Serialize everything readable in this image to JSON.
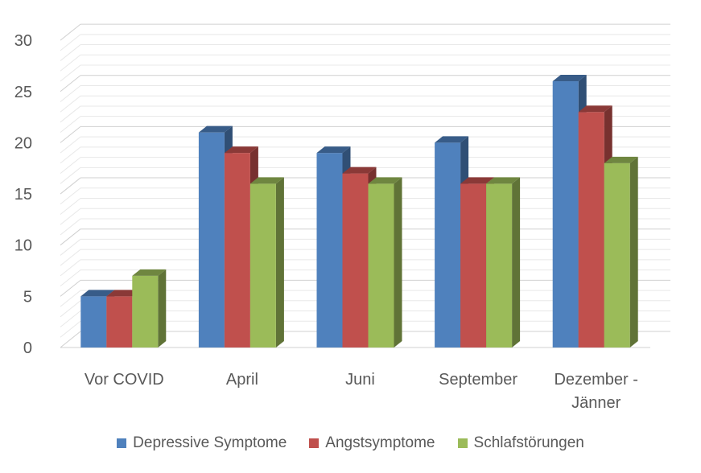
{
  "chart_data": {
    "type": "bar",
    "three_d": true,
    "categories": [
      "Vor COVID",
      "April",
      "Juni",
      "September",
      "Dezember - Jänner"
    ],
    "category_lines": [
      [
        "Vor COVID"
      ],
      [
        "April"
      ],
      [
        "Juni"
      ],
      [
        "September"
      ],
      [
        "Dezember -",
        "Jänner"
      ]
    ],
    "series": [
      {
        "name": "Depressive Symptome",
        "color": "#4F81BD",
        "values": [
          5,
          21,
          19,
          20,
          26
        ]
      },
      {
        "name": "Angstsymptome",
        "color": "#C0504D",
        "values": [
          5,
          19,
          17,
          16,
          23
        ]
      },
      {
        "name": "Schlafstörungen",
        "color": "#9BBB59",
        "values": [
          7,
          16,
          16,
          16,
          18
        ]
      }
    ],
    "ylim": [
      0,
      30
    ],
    "yticks": [
      0,
      5,
      10,
      15,
      20,
      25,
      30
    ],
    "grid": true,
    "legend": "bottom",
    "title": "",
    "xlabel": "",
    "ylabel": ""
  }
}
